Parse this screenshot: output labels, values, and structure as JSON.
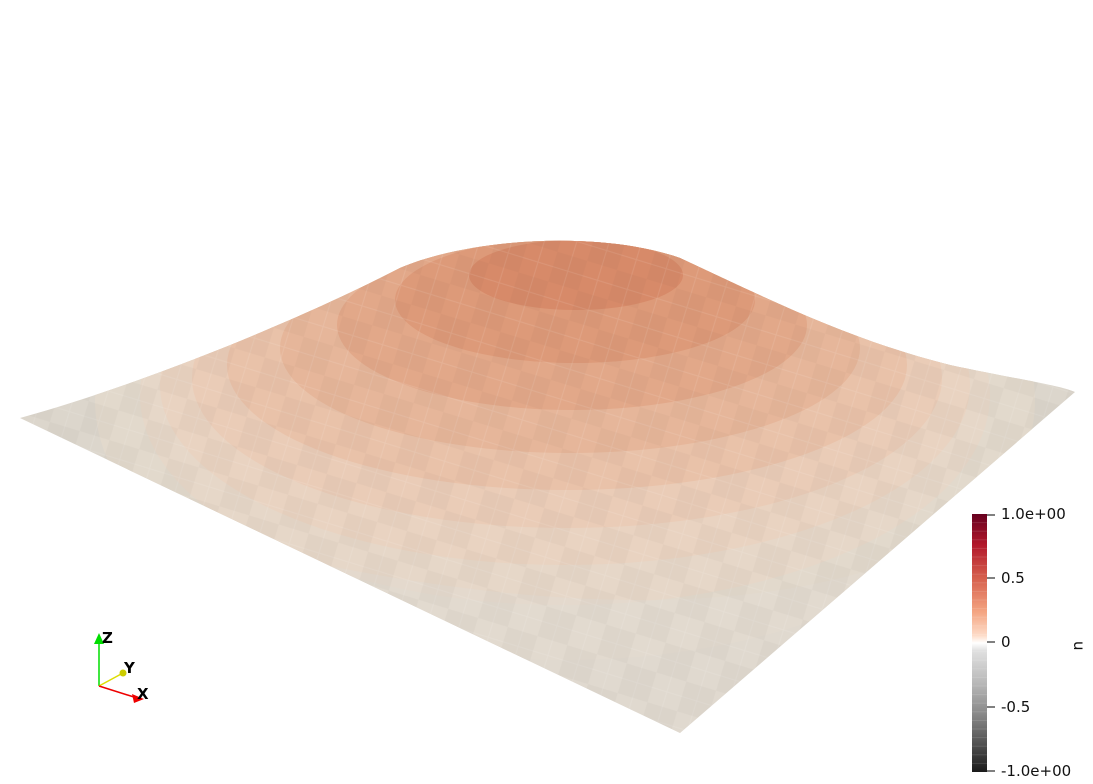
{
  "scene": {
    "surface": "warped-mesh",
    "scalar_field": "u"
  },
  "colorbar": {
    "title": "u",
    "range": [
      -1.0,
      1.0
    ],
    "tick_values": [
      1.0,
      0.5,
      0,
      -0.5,
      -1.0
    ],
    "tick_labels": [
      "1.0e+00",
      "0.5",
      "0",
      "-0.5",
      "-1.0e+00"
    ],
    "colormap": "gray-to-red diverging",
    "bands": 30
  },
  "orientation_axes": {
    "x": {
      "label": "X",
      "color": "#ff0000"
    },
    "y": {
      "label": "Y",
      "color": "#ffff00"
    },
    "z": {
      "label": "Z",
      "color": "#00ff00"
    }
  },
  "colors": {
    "background": "#ffffff",
    "surface_low": "#e0d8cc",
    "surface_high": "#cf7a5a"
  }
}
